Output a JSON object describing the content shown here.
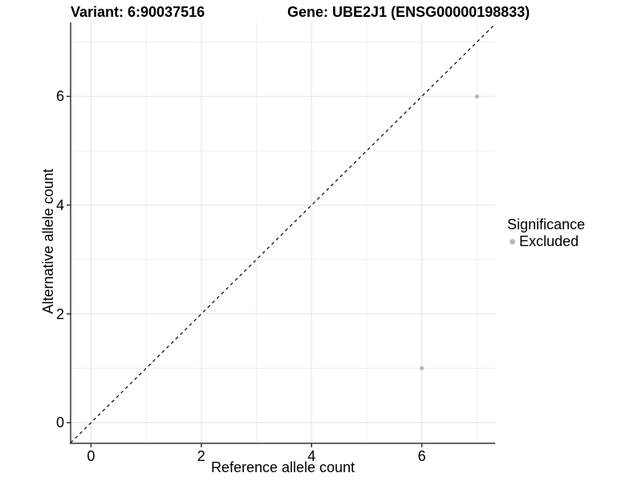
{
  "header": {
    "title_left": "Variant: 6:90037516",
    "title_right": "Gene: UBE2J1 (ENSG00000198833)"
  },
  "legend": {
    "title": "Significance",
    "items": [
      {
        "label": "Excluded",
        "color": "#b9b9b9"
      }
    ]
  },
  "chart_data": {
    "type": "scatter",
    "xlabel": "Reference allele count",
    "ylabel": "Alternative allele count",
    "xlim": [
      -0.37,
      7.33
    ],
    "ylim": [
      -0.38,
      7.36
    ],
    "xticks": [
      0,
      2,
      4,
      6
    ],
    "yticks": [
      0,
      2,
      4,
      6
    ],
    "xminor": [
      1,
      3,
      5,
      7
    ],
    "yminor": [
      1,
      3,
      5,
      7
    ],
    "grid": "major and minor, light gray on white",
    "legend_position": "right",
    "reference_line": {
      "type": "identity y=x",
      "slope": 1,
      "intercept": 0,
      "style": "dashed",
      "color": "#000000"
    },
    "series": [
      {
        "name": "Excluded",
        "color": "#b9b9b9",
        "point_radius": 2.6,
        "points": [
          {
            "x": 7,
            "y": 6
          },
          {
            "x": 6,
            "y": 1
          }
        ]
      }
    ]
  },
  "colors": {
    "background": "#ffffff",
    "axis_line": "#333333",
    "tick_mark": "#333333",
    "major_grid": "#e3e3e3",
    "minor_grid": "#efefef",
    "text": "#000000"
  }
}
